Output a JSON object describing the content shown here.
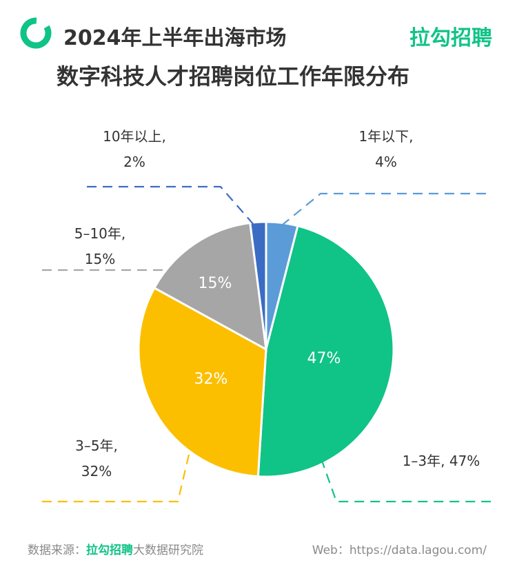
{
  "header": {
    "title_line1": "2024年上半年出海市场",
    "title_line2": "数字科技人才招聘岗位工作年限分布",
    "brand": "拉勾招聘"
  },
  "colors": {
    "accent": "#10c386",
    "text": "#333333",
    "muted": "#8a8a8a"
  },
  "chart_data": {
    "type": "pie",
    "series": [
      {
        "name": "1年以下",
        "value": 4,
        "color": "#5b9bd8",
        "callout": "1年以下,",
        "callout_pct": "4%",
        "inner_label": ""
      },
      {
        "name": "1-3年",
        "value": 47,
        "color": "#10c386",
        "callout": "1–3年, 47%",
        "callout_pct": "",
        "inner_label": "47%"
      },
      {
        "name": "3-5年",
        "value": 32,
        "color": "#fbbf00",
        "callout": "3–5年,",
        "callout_pct": "32%",
        "inner_label": "32%"
      },
      {
        "name": "5-10年",
        "value": 15,
        "color": "#a6a6a6",
        "callout": "5–10年,",
        "callout_pct": "15%",
        "inner_label": "15%"
      },
      {
        "name": "10年以上",
        "value": 2,
        "color": "#3b6cc4",
        "callout": "10年以上,",
        "callout_pct": "2%",
        "inner_label": ""
      }
    ]
  },
  "footer": {
    "source_label": "数据来源：",
    "source_brand": "拉勾招聘",
    "source_suffix": "大数据研究院",
    "web": "Web：https://data.lagou.com/"
  }
}
